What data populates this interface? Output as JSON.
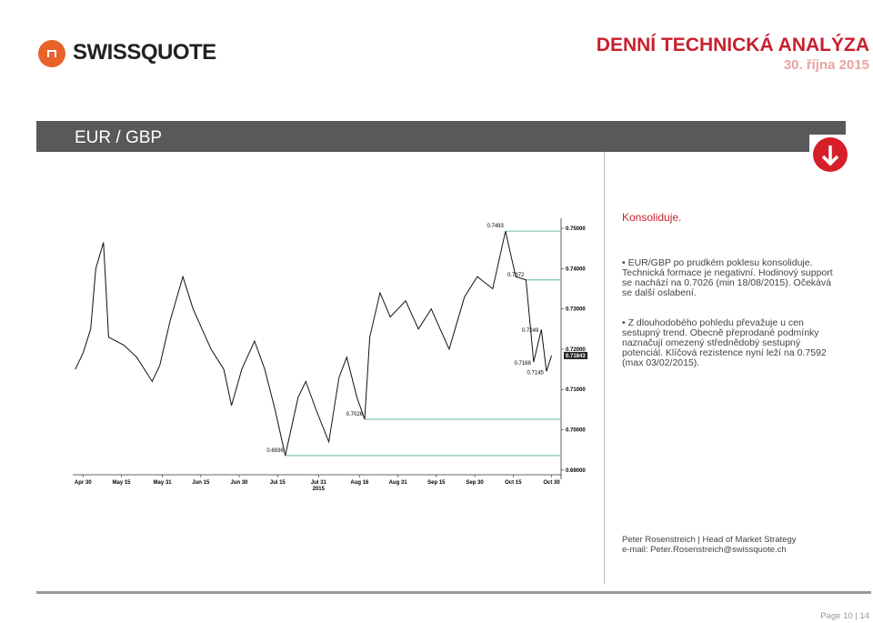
{
  "header": {
    "logo": "SWISSQUOTE",
    "title": "DENNÍ TECHNICKÁ ANALÝZA",
    "date": "30. října 2015"
  },
  "pair": "EUR / GBP",
  "commentary": {
    "heading": "Konsoliduje.",
    "bullets": [
      "EUR/GBP po prudkém poklesu konsoliduje. Technická formace je negativní. Hodinový support se nachází na 0.7026 (min 18/08/2015). Očekává se další oslabení.",
      "Z dlouhodobého pohledu převažuje u cen sestupný trend. Obecně přeprodané podmínky naznačují omezený střednědobý sestupný potenciál. Klíčová rezistence nyní leží na 0.7592 (max 03/02/2015)."
    ]
  },
  "author": {
    "line": "Peter Rosenstreich | Head of Market Strategy",
    "email": "e-mail: Peter.Rosenstreich@swissquote.ch"
  },
  "footer": "Page 10 | 14",
  "chart_data": {
    "type": "line",
    "color": "#111111",
    "x": [
      "2015-04-27",
      "2015-04-30",
      "2015-05-03",
      "2015-05-05",
      "2015-05-08",
      "2015-05-10",
      "2015-05-16",
      "2015-05-21",
      "2015-05-27",
      "2015-05-30",
      "2015-06-03",
      "2015-06-08",
      "2015-06-12",
      "2015-06-19",
      "2015-06-24",
      "2015-06-27",
      "2015-07-01",
      "2015-07-06",
      "2015-07-10",
      "2015-07-14",
      "2015-07-18",
      "2015-07-23",
      "2015-07-26",
      "2015-07-30",
      "2015-08-04",
      "2015-08-08",
      "2015-08-11",
      "2015-08-15",
      "2015-08-18",
      "2015-08-20",
      "2015-08-24",
      "2015-08-28",
      "2015-09-03",
      "2015-09-08",
      "2015-09-13",
      "2015-09-20",
      "2015-09-26",
      "2015-10-01",
      "2015-10-07",
      "2015-10-12",
      "2015-10-16",
      "2015-10-20",
      "2015-10-23",
      "2015-10-26",
      "2015-10-28",
      "2015-10-30"
    ],
    "values": [
      0.715,
      0.719,
      0.725,
      0.74,
      0.7465,
      0.723,
      0.721,
      0.718,
      0.712,
      0.716,
      0.727,
      0.738,
      0.73,
      0.72,
      0.715,
      0.706,
      0.715,
      0.722,
      0.715,
      0.705,
      0.6936,
      0.708,
      0.712,
      0.705,
      0.697,
      0.713,
      0.718,
      0.708,
      0.7026,
      0.723,
      0.734,
      0.728,
      0.732,
      0.725,
      0.73,
      0.72,
      0.733,
      0.738,
      0.735,
      0.7493,
      0.738,
      0.7372,
      0.7168,
      0.7249,
      0.7145,
      0.71843
    ],
    "xlim": [
      "2015-04-26",
      "2015-11-02"
    ],
    "xticks": [
      {
        "value": "2015-04-30",
        "label": "Apr 30"
      },
      {
        "value": "2015-05-15",
        "label": "May 15"
      },
      {
        "value": "2015-05-31",
        "label": "May 31"
      },
      {
        "value": "2015-06-15",
        "label": "Jun 15"
      },
      {
        "value": "2015-06-30",
        "label": "Jun 30"
      },
      {
        "value": "2015-07-15",
        "label": "Jul 15"
      },
      {
        "value": "2015-07-31",
        "label": "Jul 31"
      },
      {
        "value": "2015-08-16",
        "label": "Aug 16"
      },
      {
        "value": "2015-08-31",
        "label": "Aug 31"
      },
      {
        "value": "2015-09-15",
        "label": "Sep 15"
      },
      {
        "value": "2015-09-30",
        "label": "Sep 30"
      },
      {
        "value": "2015-10-15",
        "label": "Oct 15"
      },
      {
        "value": "2015-10-30",
        "label": "Oct 30"
      }
    ],
    "year_label": "2015",
    "ylim": [
      0.6877,
      0.7525
    ],
    "yticks": [
      {
        "value": 0.69,
        "label": "0.69000"
      },
      {
        "value": 0.7,
        "label": "0.70000"
      },
      {
        "value": 0.71,
        "label": "0.71000"
      },
      {
        "value": 0.72,
        "label": "0.72000"
      },
      {
        "value": 0.73,
        "label": "0.73000"
      },
      {
        "value": 0.74,
        "label": "0.74000"
      },
      {
        "value": 0.75,
        "label": "0.75000"
      }
    ],
    "levels": [
      0.7493,
      0.7372,
      0.7026,
      0.6936
    ],
    "level_color": "#7fc7a8",
    "annotations": [
      0.7249,
      0.7168,
      0.7145
    ],
    "last_price": {
      "value": 0.71843,
      "label": "0.71843"
    }
  }
}
